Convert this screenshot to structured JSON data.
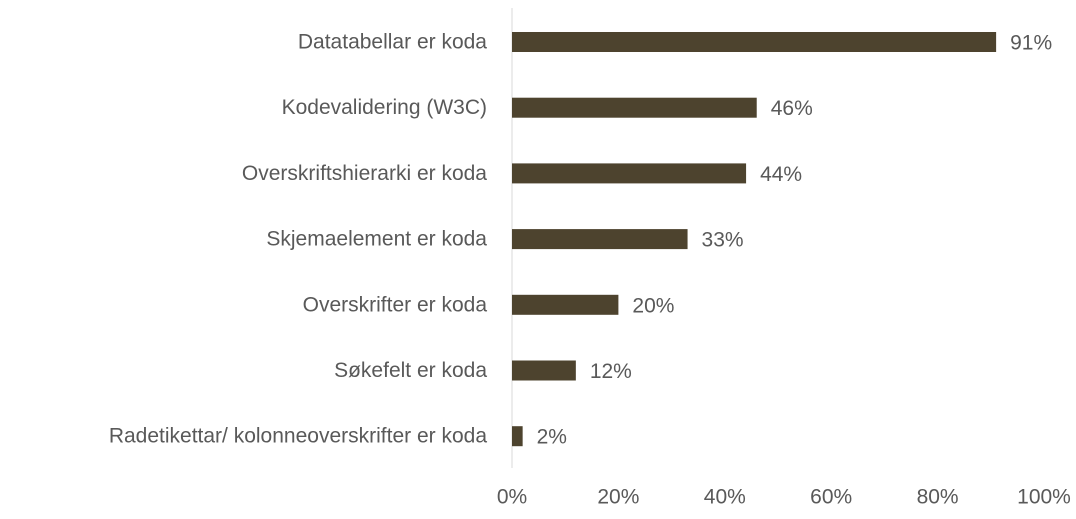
{
  "chart_data": {
    "type": "bar",
    "orientation": "horizontal",
    "categories": [
      "Datatabellar er koda",
      "Kodevalidering (W3C)",
      "Overskriftshierarki er koda",
      "Skjemaelement er koda",
      "Overskrifter er koda",
      "Søkefelt er koda",
      "Radetikettar/ kolonneoverskrifter er koda"
    ],
    "values": [
      91,
      46,
      44,
      33,
      20,
      12,
      2
    ],
    "value_labels": [
      "91%",
      "46%",
      "44%",
      "33%",
      "20%",
      "12%",
      "2%"
    ],
    "color": "#4d432e",
    "xlim": [
      0,
      100
    ],
    "xticks": [
      {
        "value": 0,
        "label": "0%"
      },
      {
        "value": 20,
        "label": "20%"
      },
      {
        "value": 40,
        "label": "40%"
      },
      {
        "value": 60,
        "label": "60%"
      },
      {
        "value": 80,
        "label": "80%"
      },
      {
        "value": 100,
        "label": "100%"
      }
    ],
    "grid": false
  }
}
